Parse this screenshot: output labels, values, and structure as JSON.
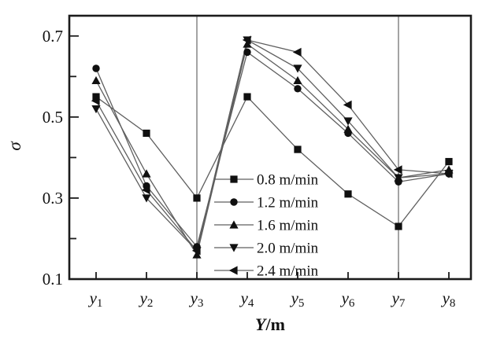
{
  "figure": {
    "background": "#ffffff",
    "description": "Scatter-line plot of sigma versus measurement position Y/m for five pulling speeds"
  },
  "chart_data": {
    "type": "line",
    "title": "",
    "xlabel": "Y/m",
    "ylabel": "σ",
    "categories": [
      "y1",
      "y2",
      "y3",
      "y4",
      "y5",
      "y6",
      "y7",
      "y8"
    ],
    "ylim": [
      0.1,
      0.75
    ],
    "yticks_labeled": [
      0.1,
      0.3,
      0.5,
      0.7
    ],
    "yticks_minor": [
      0.2,
      0.4,
      0.6
    ],
    "grid": "vertical-lines-at-y3-and-y7",
    "grid_vertical_at": [
      "y3",
      "y7"
    ],
    "legend_position": "inside-bottom-center",
    "series": [
      {
        "name": "0.8 m/min",
        "marker": "square",
        "values": [
          0.55,
          0.46,
          0.3,
          0.55,
          0.42,
          0.31,
          0.23,
          0.39
        ]
      },
      {
        "name": "1.2 m/min",
        "marker": "circle",
        "values": [
          0.62,
          0.33,
          0.18,
          0.66,
          0.57,
          0.46,
          0.34,
          0.36
        ]
      },
      {
        "name": "1.6 m/min",
        "marker": "triangle-up",
        "values": [
          0.59,
          0.36,
          0.16,
          0.68,
          0.59,
          0.47,
          0.35,
          0.37
        ]
      },
      {
        "name": "2.0 m/min",
        "marker": "triangle-down",
        "values": [
          0.52,
          0.3,
          0.17,
          0.69,
          0.62,
          0.49,
          0.35,
          0.36
        ]
      },
      {
        "name": "2.4 m/min",
        "marker": "triangle-left",
        "values": [
          0.54,
          0.32,
          0.17,
          0.69,
          0.66,
          0.53,
          0.37,
          0.36
        ]
      }
    ],
    "colors": {
      "line": "#5f5f5f",
      "marker": "#101010",
      "frame": "#1c1c1c",
      "gridline": "#7d7d7d",
      "text": "#111111"
    }
  }
}
